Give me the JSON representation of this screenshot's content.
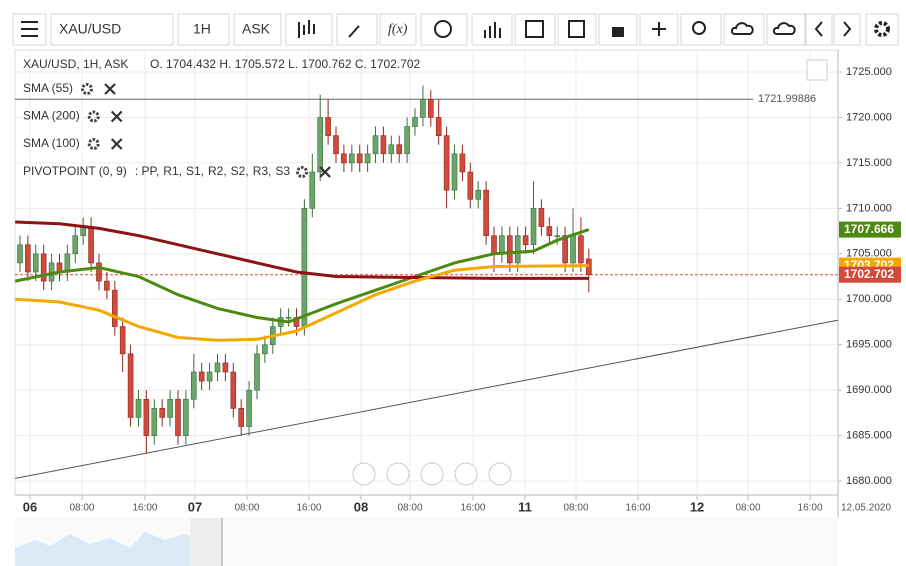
{
  "toolbar": {
    "symbol": "XAU/USD",
    "timeframe": "1H",
    "price_side": "ASK",
    "function_button": "f(x)"
  },
  "chart_data": {
    "type": "candlestick",
    "header": "XAU/USD, 1H, ASK",
    "ohlc_text": "O. 1704.432 H. 1705.572 L. 1700.762 C. 1702.702",
    "up_color": "#6aa56a",
    "down_color": "#d24a3c",
    "x": [
      0,
      1,
      2,
      3,
      4,
      5,
      6,
      7,
      8,
      9,
      10,
      11,
      12,
      13,
      14,
      15,
      16,
      17,
      18,
      19,
      20,
      21,
      22,
      23,
      24,
      25,
      26,
      27,
      28,
      29,
      30,
      31,
      32,
      33,
      34,
      35,
      36,
      37,
      38,
      39,
      40,
      41,
      42,
      43,
      44,
      45,
      46,
      47,
      48,
      49,
      50,
      51,
      52,
      53,
      54,
      55,
      56,
      57,
      58,
      59,
      60,
      61,
      62,
      63,
      64,
      65,
      66,
      67,
      68,
      69,
      70,
      71,
      72
    ],
    "open": [
      1704,
      1706,
      1703,
      1705,
      1702,
      1704,
      1703,
      1705,
      1707,
      1708,
      1704,
      1702,
      1701,
      1697,
      1694,
      1687,
      1689,
      1685,
      1688,
      1687,
      1689,
      1685,
      1689,
      1692,
      1691,
      1692,
      1693,
      1692,
      1688,
      1686,
      1690,
      1694,
      1695,
      1697,
      1698,
      1698,
      1697,
      1710,
      1714,
      1720,
      1718,
      1716,
      1715,
      1716,
      1715,
      1716,
      1718,
      1716,
      1717,
      1716,
      1719,
      1720,
      1722,
      1720,
      1718,
      1712,
      1716,
      1714,
      1711,
      1712,
      1707,
      1705,
      1707,
      1704,
      1707,
      1706,
      1710,
      1708,
      1707,
      1707,
      1704,
      1707,
      1704.432
    ],
    "high": [
      1707,
      1707,
      1706,
      1706,
      1705,
      1705,
      1706,
      1708,
      1709,
      1709,
      1705,
      1703,
      1702,
      1698,
      1695,
      1690,
      1690,
      1689,
      1689,
      1690,
      1690,
      1690,
      1694,
      1693,
      1693,
      1694,
      1694,
      1693,
      1689,
      1691,
      1695,
      1696,
      1698,
      1699,
      1699,
      1699,
      1711,
      1716,
      1722.5,
      1722,
      1719,
      1717,
      1717,
      1717,
      1717,
      1719,
      1719,
      1718,
      1718,
      1720,
      1721,
      1723.5,
      1723,
      1722,
      1719,
      1717,
      1717,
      1715,
      1713,
      1713,
      1708,
      1708,
      1708,
      1708,
      1708,
      1713,
      1711,
      1709,
      1708,
      1708,
      1710,
      1709,
      1705.572
    ],
    "low": [
      1703,
      1702,
      1702,
      1701,
      1701,
      1702,
      1702,
      1704,
      1706,
      1703,
      1701,
      1700,
      1696,
      1692,
      1686,
      1686,
      1683,
      1684,
      1686,
      1686,
      1684,
      1684,
      1688,
      1690,
      1690,
      1691,
      1691,
      1687,
      1685,
      1685,
      1689,
      1693,
      1694,
      1696,
      1697,
      1696,
      1696,
      1709,
      1713,
      1717,
      1715,
      1714,
      1714,
      1714,
      1714,
      1715,
      1715,
      1715,
      1715,
      1715,
      1718,
      1719,
      1719,
      1717,
      1710,
      1711,
      1713,
      1710,
      1710,
      1706,
      1703,
      1704,
      1703,
      1703,
      1705,
      1705,
      1707,
      1706,
      1706,
      1703,
      1703,
      1703,
      1700.762
    ],
    "close": [
      1706,
      1703,
      1705,
      1702,
      1704,
      1703,
      1705,
      1707,
      1708,
      1704,
      1702,
      1701,
      1697,
      1694,
      1687,
      1689,
      1685,
      1688,
      1687,
      1689,
      1685,
      1689,
      1692,
      1691,
      1692,
      1693,
      1692,
      1688,
      1686,
      1690,
      1694,
      1695,
      1697,
      1698,
      1698,
      1697,
      1710,
      1714,
      1720,
      1718,
      1716,
      1715,
      1716,
      1715,
      1716,
      1718,
      1716,
      1717,
      1716,
      1719,
      1720,
      1722,
      1720,
      1718,
      1712,
      1716,
      1714,
      1711,
      1712,
      1707,
      1705,
      1707,
      1704,
      1707,
      1706,
      1710,
      1708,
      1707,
      1707,
      1704,
      1707,
      1704,
      1702.702
    ],
    "lines": [
      {
        "name": "SMA (55)",
        "color": "#4e8a12",
        "x": [
          -0.6,
          5,
          10,
          15,
          20,
          25,
          30,
          34,
          40,
          45,
          50,
          55,
          60,
          65,
          68,
          72
        ],
        "values": [
          1702,
          1703,
          1703.5,
          1702.5,
          1700.5,
          1699,
          1698,
          1697.5,
          1699.5,
          1701,
          1702.5,
          1704,
          1705,
          1705.3,
          1706.5,
          1707.666
        ]
      },
      {
        "name": "SMA (200)",
        "color": "#8e1414",
        "x": [
          -0.6,
          5,
          10,
          15,
          20,
          25,
          30,
          35,
          40,
          50,
          60,
          72
        ],
        "values": [
          1708.5,
          1708.3,
          1707.8,
          1707,
          1706,
          1705,
          1704,
          1703,
          1702.5,
          1702.4,
          1702.3,
          1702.3
        ]
      },
      {
        "name": "SMA (100)",
        "color": "#f5a800",
        "x": [
          -0.6,
          5,
          10,
          15,
          20,
          25,
          30,
          35,
          40,
          45,
          50,
          55,
          60,
          72
        ],
        "values": [
          1700,
          1699.7,
          1698.8,
          1697,
          1695.8,
          1695.5,
          1695.6,
          1696.5,
          1698.5,
          1700.5,
          1702,
          1703.2,
          1703.6,
          1703.702
        ]
      }
    ],
    "pivot_name": "PIVOTPOINT (0, 9)",
    "pivot_parts": [
      {
        "text": ": PP,",
        "color": "#3a86d8"
      },
      {
        "text": "R1,",
        "color": "#3f8f1e"
      },
      {
        "text": "S1,",
        "color": "#c0201a"
      },
      {
        "text": "R2,",
        "color": "#a01010"
      },
      {
        "text": "S2,",
        "color": "#f0a000"
      },
      {
        "text": "R3,",
        "color": "#f0a000"
      },
      {
        "text": "S3",
        "color": "#f2d200"
      }
    ],
    "trend_line": {
      "x": [
        -0.6,
        103.5
      ],
      "values": [
        1680.3,
        1697.7
      ]
    },
    "reference_line": {
      "value": 1721.99886
    },
    "last_price_line": {
      "value": 1702.702
    },
    "price_labels": [
      {
        "value": 1707.666,
        "color": "#4e8a12"
      },
      {
        "value": 1703.702,
        "color": "#f5a800"
      },
      {
        "value": 1702.702,
        "color": "#d24a3c"
      }
    ],
    "xlim": [
      -0.63,
      103.54
    ],
    "ylim": [
      1678.47,
      1727.42
    ],
    "yticks": [
      {
        "value": 1680,
        "label": "1680.000"
      },
      {
        "value": 1685,
        "label": "1685.000"
      },
      {
        "value": 1690,
        "label": "1690.000"
      },
      {
        "value": 1695,
        "label": "1695.000"
      },
      {
        "value": 1700,
        "label": "1700.000"
      },
      {
        "value": 1705,
        "label": "1705.000"
      },
      {
        "value": 1710,
        "label": "1710.000"
      },
      {
        "value": 1715,
        "label": "1715.000"
      },
      {
        "value": 1720,
        "label": "1720.000"
      },
      {
        "value": 1725,
        "label": "1725.000"
      }
    ],
    "xticks": [
      {
        "value": 1.27,
        "label": "06"
      },
      {
        "value": 7.85,
        "label": "08:00"
      },
      {
        "value": 15.82,
        "label": "16:00"
      },
      {
        "value": 22.15,
        "label": "07"
      },
      {
        "value": 28.73,
        "label": "08:00"
      },
      {
        "value": 36.58,
        "label": "16:00"
      },
      {
        "value": 43.16,
        "label": "08"
      },
      {
        "value": 49.37,
        "label": "08:00"
      },
      {
        "value": 57.34,
        "label": "16:00"
      },
      {
        "value": 63.92,
        "label": "11"
      },
      {
        "value": 70.38,
        "label": "08:00"
      },
      {
        "value": 78.23,
        "label": "16:00"
      },
      {
        "value": 85.7,
        "label": "12"
      },
      {
        "value": 92.15,
        "label": "08:00"
      },
      {
        "value": 100,
        "label": "16:00"
      }
    ],
    "date_label": "12.05.2020",
    "grid": true
  }
}
